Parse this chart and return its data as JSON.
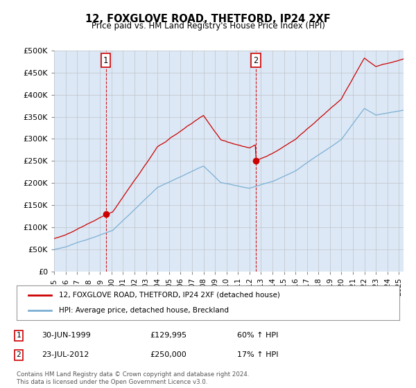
{
  "title": "12, FOXGLOVE ROAD, THETFORD, IP24 2XF",
  "subtitle": "Price paid vs. HM Land Registry's House Price Index (HPI)",
  "ylabel_ticks": [
    "£0",
    "£50K",
    "£100K",
    "£150K",
    "£200K",
    "£250K",
    "£300K",
    "£350K",
    "£400K",
    "£450K",
    "£500K"
  ],
  "ytick_vals": [
    0,
    50000,
    100000,
    150000,
    200000,
    250000,
    300000,
    350000,
    400000,
    450000,
    500000
  ],
  "ylim": [
    0,
    500000
  ],
  "xlim_start": 1995.0,
  "xlim_end": 2025.4,
  "red_line_color": "#cc0000",
  "blue_line_color": "#7bafd4",
  "plot_bg_color": "#dce8f5",
  "sale1": {
    "date_x": 1999.5,
    "price": 129995,
    "label": "1"
  },
  "sale2": {
    "date_x": 2012.55,
    "price": 250000,
    "label": "2"
  },
  "legend_line1": "12, FOXGLOVE ROAD, THETFORD, IP24 2XF (detached house)",
  "legend_line2": "HPI: Average price, detached house, Breckland",
  "table_rows": [
    {
      "num": "1",
      "date": "30-JUN-1999",
      "price": "£129,995",
      "change": "60% ↑ HPI"
    },
    {
      "num": "2",
      "date": "23-JUL-2012",
      "price": "£250,000",
      "change": "17% ↑ HPI"
    }
  ],
  "footnote": "Contains HM Land Registry data © Crown copyright and database right 2024.\nThis data is licensed under the Open Government Licence v3.0.",
  "background_color": "#ffffff",
  "grid_color": "#aaaaaa"
}
